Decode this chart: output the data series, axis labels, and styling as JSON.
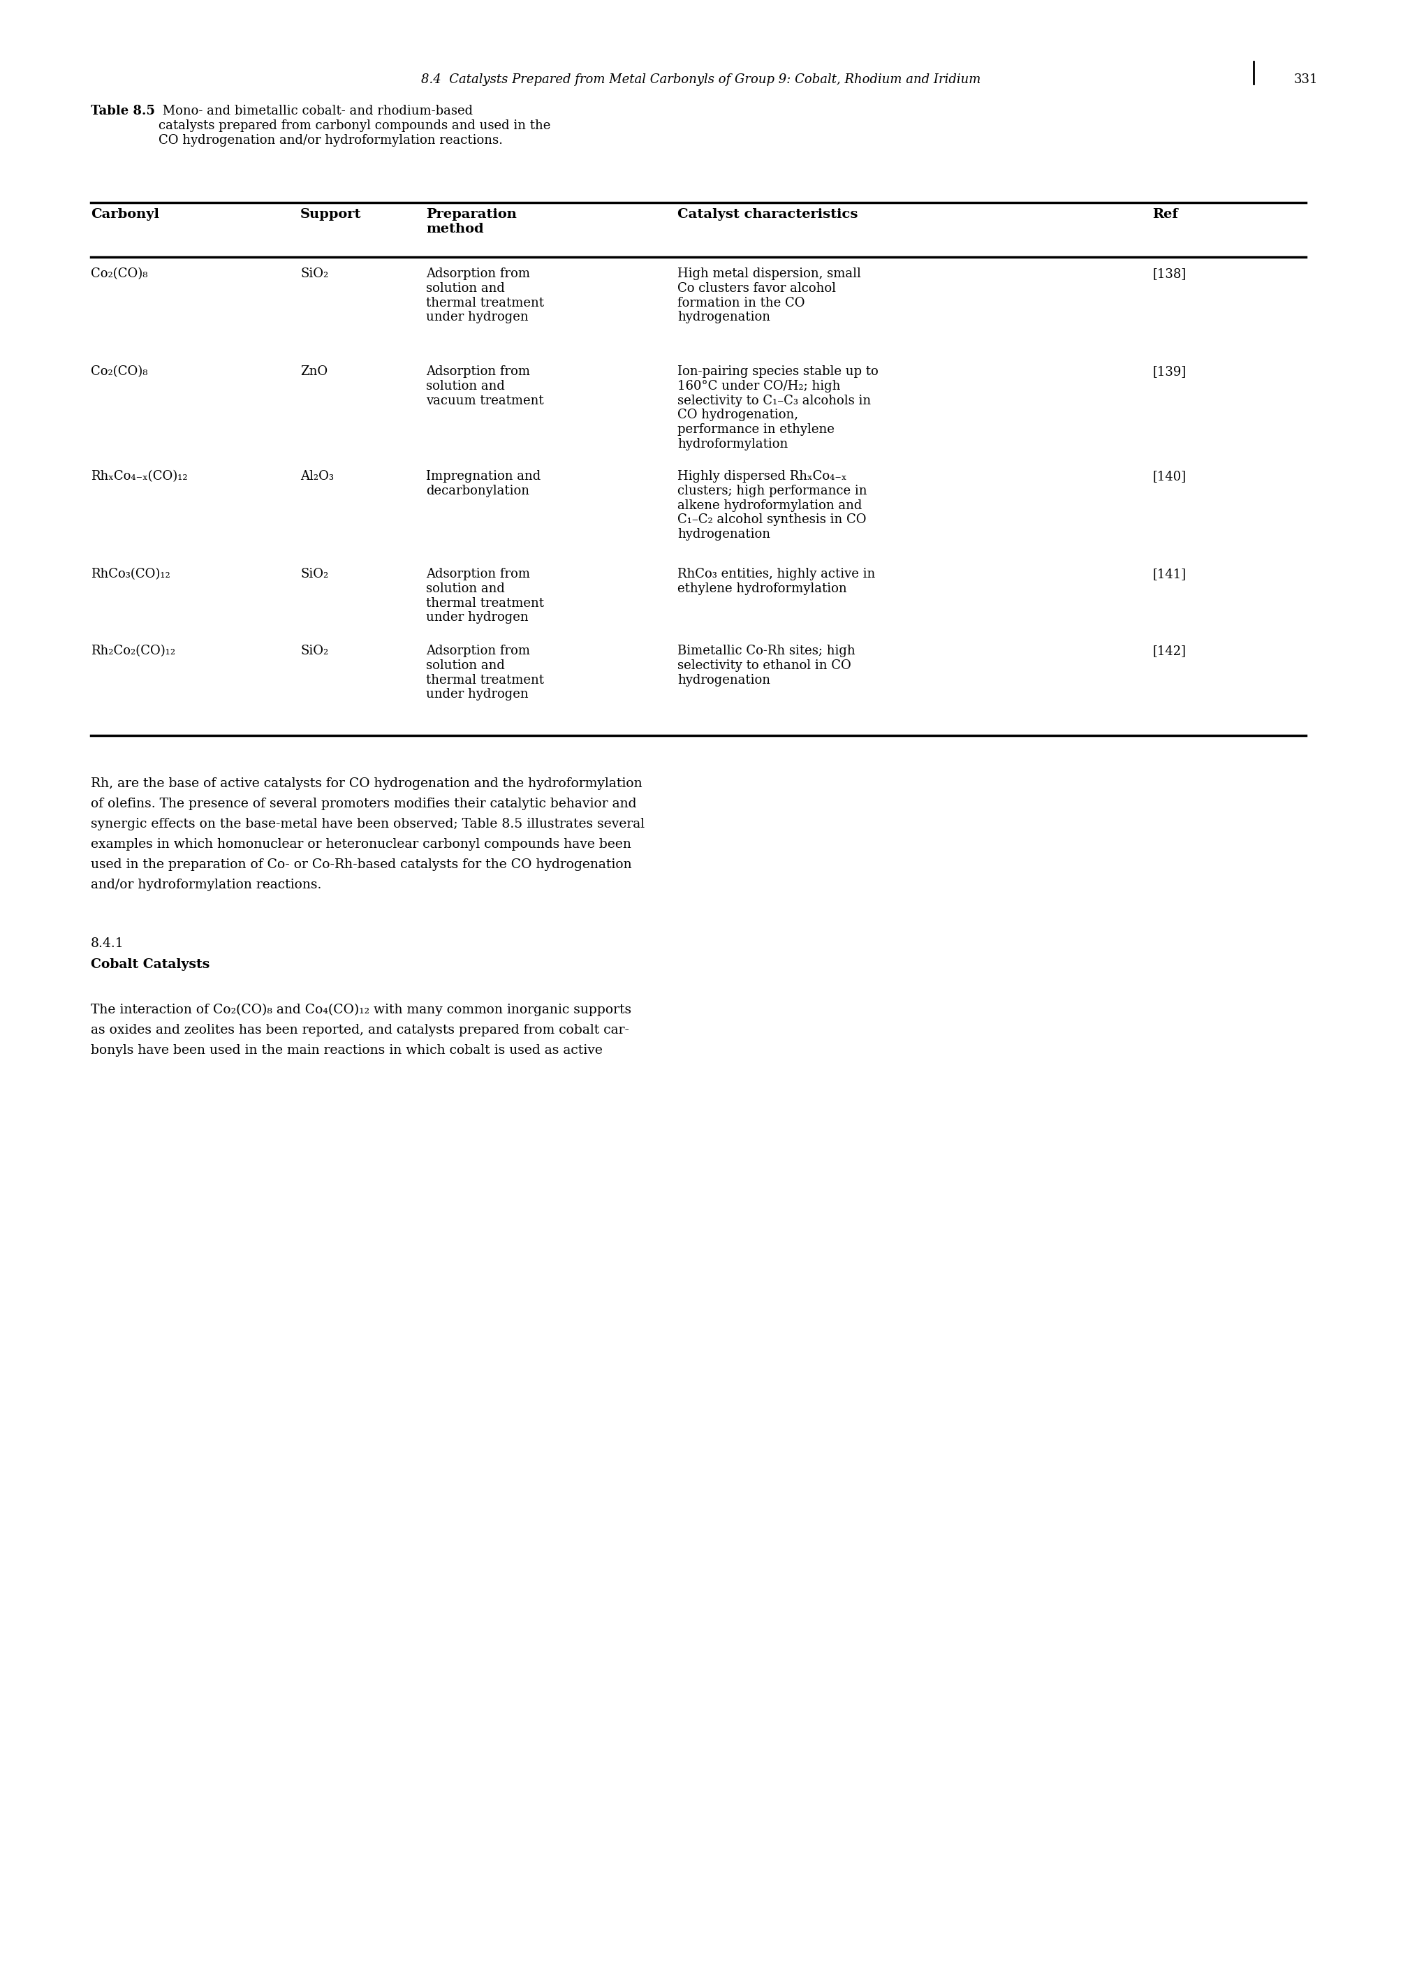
{
  "page_header": "8.4  Catalysts Prepared from Metal Carbonyls of Group 9: Cobalt, Rhodium and Iridium",
  "page_number": "331",
  "table_caption_bold": "Table 8.5",
  "table_caption_rest": " Mono- and bimetallic cobalt- and rhodium-based\ncatalysts prepared from carbonyl compounds and used in the\nCO hydrogenation and/or hydroformylation reactions.",
  "col_headers": [
    "Carbonyl",
    "Support",
    "Preparation\nmethod",
    "Catalyst characteristics",
    "Ref"
  ],
  "rows": [
    {
      "carbonyl": "Co₂(CO)₈",
      "support": "SiO₂",
      "preparation": "Adsorption from\nsolution and\nthermal treatment\nunder hydrogen",
      "characteristics": "High metal dispersion, small\nCo clusters favor alcohol\nformation in the CO\nhydrogenation",
      "ref": "[138]"
    },
    {
      "carbonyl": "Co₂(CO)₈",
      "support": "ZnO",
      "preparation": "Adsorption from\nsolution and\nvacuum treatment",
      "characteristics": "Ion-pairing species stable up to\n160°C under CO/H₂; high\nselectivity to C₁–C₃ alcohols in\nCO hydrogenation,\nperformance in ethylene\nhydroformylation",
      "ref": "[139]"
    },
    {
      "carbonyl": "RhₓCo₄₋ₓ(CO)₁₂",
      "support": "Al₂O₃",
      "preparation": "Impregnation and\ndecarbonylation",
      "characteristics": "Highly dispersed RhₓCo₄₋ₓ\nclusters; high performance in\nalkene hydroformylation and\nC₁–C₂ alcohol synthesis in CO\nhydrogenation",
      "ref": "[140]"
    },
    {
      "carbonyl": "RhCo₃(CO)₁₂",
      "support": "SiO₂",
      "preparation": "Adsorption from\nsolution and\nthermal treatment\nunder hydrogen",
      "characteristics": "RhCo₃ entities, highly active in\nethylene hydroformylation",
      "ref": "[141]"
    },
    {
      "carbonyl": "Rh₂Co₂(CO)₁₂",
      "support": "SiO₂",
      "preparation": "Adsorption from\nsolution and\nthermal treatment\nunder hydrogen",
      "characteristics": "Bimetallic Co-Rh sites; high\nselectivity to ethanol in CO\nhydrogenation",
      "ref": "[142]"
    }
  ],
  "body_text": "Rh, are the base of active catalysts for CO hydrogenation and the hydroformylation\nof olefins. The presence of several promoters modifies their catalytic behavior and\nsynergic effects on the base-metal have been observed; Table 8.5 illustrates several\nexamples in which homonuclear or heteronuclear carbonyl compounds have been\nused in the preparation of Co- or Co-Rh-based catalysts for the CO hydrogenation\nand/or hydroformylation reactions.",
  "section_number": "8.4.1",
  "section_title": "Cobalt Catalysts",
  "bottom_text": "The interaction of Co₂(CO)₈ and Co₄(CO)₁₂ with many common inorganic supports\nas oxides and zeolites has been reported, and catalysts prepared from cobalt car-\nbonyls have been used in the main reactions in which cobalt is used as active"
}
